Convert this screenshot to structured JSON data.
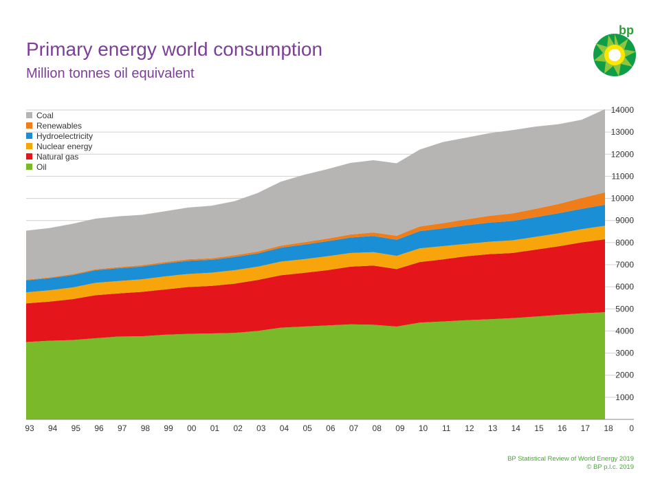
{
  "header": {
    "title": "Primary energy world consumption",
    "subtitle": "Million tonnes oil equivalent",
    "logo_text": "bp"
  },
  "footer": {
    "source": "BP Statistical Review of World Energy 2019",
    "copyright": "© BP p.l.c. 2019"
  },
  "colors": {
    "Coal": "#b7b4b4",
    "Renewables": "#ef7d1a",
    "Hydroelectricity": "#1b8fd6",
    "Nuclear energy": "#f7a50a",
    "Natural gas": "#e4161c",
    "Oil": "#7ab929",
    "title": "#7b3f98",
    "footer": "#4aa33a"
  },
  "chart_data": {
    "type": "area",
    "stacked": true,
    "title": "Primary energy world consumption",
    "ylabel": "Million tonnes oil equivalent",
    "xlabel": "",
    "ylim": [
      0,
      14000
    ],
    "yticks": [
      0,
      1000,
      2000,
      3000,
      4000,
      5000,
      6000,
      7000,
      8000,
      9000,
      10000,
      11000,
      12000,
      13000,
      14000
    ],
    "categories": [
      "93",
      "94",
      "95",
      "96",
      "97",
      "98",
      "99",
      "00",
      "01",
      "02",
      "03",
      "04",
      "05",
      "06",
      "07",
      "08",
      "09",
      "10",
      "11",
      "12",
      "13",
      "14",
      "15",
      "16",
      "17",
      "18"
    ],
    "legend_order": [
      "Coal",
      "Renewables",
      "Hydroelectricity",
      "Nuclear energy",
      "Natural gas",
      "Oil"
    ],
    "legend_position": "top-left",
    "series": [
      {
        "name": "Oil",
        "values": [
          3500,
          3560,
          3590,
          3670,
          3750,
          3760,
          3830,
          3870,
          3890,
          3910,
          4000,
          4150,
          4200,
          4250,
          4300,
          4280,
          4200,
          4380,
          4430,
          4490,
          4530,
          4580,
          4650,
          4730,
          4800,
          4850
        ]
      },
      {
        "name": "Natural gas",
        "values": [
          1750,
          1770,
          1850,
          1950,
          1950,
          2010,
          2050,
          2120,
          2150,
          2230,
          2310,
          2370,
          2430,
          2500,
          2610,
          2680,
          2600,
          2740,
          2810,
          2890,
          2950,
          2950,
          3030,
          3100,
          3210,
          3300
        ]
      },
      {
        "name": "Nuclear energy",
        "values": [
          500,
          510,
          530,
          560,
          560,
          570,
          590,
          590,
          600,
          610,
          600,
          620,
          620,
          630,
          620,
          610,
          600,
          620,
          600,
          560,
          560,
          570,
          580,
          590,
          600,
          610
        ]
      },
      {
        "name": "Hydroelectricity",
        "values": [
          540,
          550,
          560,
          570,
          580,
          580,
          590,
          600,
          580,
          600,
          600,
          630,
          660,
          680,
          700,
          730,
          730,
          780,
          800,
          840,
          860,
          880,
          890,
          910,
          920,
          950
        ]
      },
      {
        "name": "Renewables",
        "values": [
          30,
          35,
          40,
          45,
          50,
          55,
          60,
          65,
          70,
          75,
          85,
          95,
          105,
          120,
          135,
          160,
          180,
          210,
          240,
          270,
          310,
          340,
          380,
          420,
          490,
          560
        ]
      },
      {
        "name": "Coal",
        "values": [
          2220,
          2230,
          2280,
          2290,
          2300,
          2280,
          2300,
          2340,
          2380,
          2450,
          2650,
          2890,
          3050,
          3140,
          3240,
          3270,
          3280,
          3480,
          3670,
          3700,
          3740,
          3770,
          3720,
          3610,
          3540,
          3770
        ]
      }
    ]
  }
}
